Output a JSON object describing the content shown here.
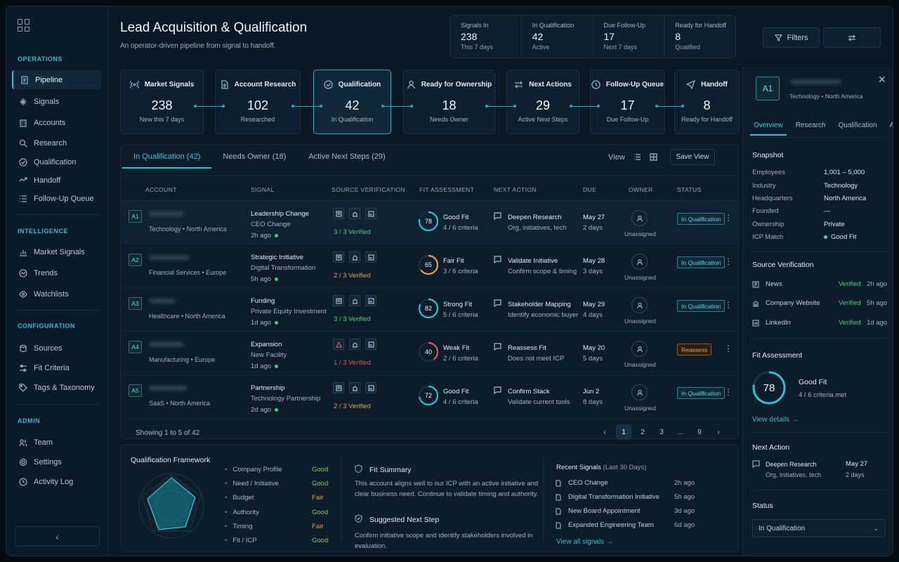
{
  "sidebar": {
    "sections": [
      {
        "title": "OPERATIONS",
        "items": [
          "Pipeline",
          "Signals",
          "Accounts",
          "Research",
          "Qualification",
          "Handoff",
          "Follow-Up Queue"
        ]
      },
      {
        "title": "INTELLIGENCE",
        "items": [
          "Market Signals",
          "Trends",
          "Watchlists"
        ]
      },
      {
        "title": "CONFIGURATION",
        "items": [
          "Sources",
          "Fit Criteria",
          "Tags & Taxonomy"
        ]
      },
      {
        "title": "ADMIN",
        "items": [
          "Team",
          "Settings",
          "Activity Log"
        ]
      }
    ],
    "collapse": "‹"
  },
  "header": {
    "title": "Lead Acquisition & Qualification",
    "subtitle": "An operator-driven pipeline from signal to handoff.",
    "kpis": [
      {
        "label": "Signals In",
        "value": "238",
        "sub": "This 7 days"
      },
      {
        "label": "In Qualification",
        "value": "42",
        "sub": "Active"
      },
      {
        "label": "Due Follow-Up",
        "value": "17",
        "sub": "Next 7 days"
      },
      {
        "label": "Ready for Handoff",
        "value": "8",
        "sub": "Qualified"
      }
    ],
    "filters_label": "Filters"
  },
  "stages": [
    {
      "title": "Market Signals",
      "value": "238",
      "sub": "New this 7 days",
      "icon": "signal-icon"
    },
    {
      "title": "Account Research",
      "value": "102",
      "sub": "Researched",
      "icon": "document-icon"
    },
    {
      "title": "Qualification",
      "value": "42",
      "sub": "In Qualification",
      "icon": "check-circle-icon"
    },
    {
      "title": "Ready for Ownership",
      "value": "18",
      "sub": "Needs Owner",
      "icon": "user-icon"
    },
    {
      "title": "Next Actions",
      "value": "29",
      "sub": "Active Next Steps",
      "icon": "arrows-icon"
    },
    {
      "title": "Follow-Up Queue",
      "value": "17",
      "sub": "Due Follow-Up",
      "icon": "clock-icon"
    },
    {
      "title": "Handoff",
      "value": "8",
      "sub": "Ready for Handoff",
      "icon": "send-icon"
    }
  ],
  "table": {
    "tabs": [
      "In Qualification (42)",
      "Needs Owner (18)",
      "Active Next Steps (29)"
    ],
    "view_label": "View",
    "save_view": "Save View",
    "columns": [
      "ACCOUNT",
      "SIGNAL",
      "SOURCE VERIFICATION",
      "FIT ASSESSMENT",
      "NEXT ACTION",
      "DUE",
      "OWNER",
      "STATUS"
    ],
    "rows": [
      {
        "rank": "A1",
        "loc": "Technology • North America",
        "signal": "Leadership Change",
        "signal_sub": "CEO Change",
        "age": "2h ago",
        "verified": "3 / 3 Verified",
        "score": "78",
        "fit": "Good Fit",
        "criteria": "4 / 6 criteria",
        "action": "Deepen Research",
        "action_sub": "Org, initiatives, tech",
        "due": "May 27",
        "due_sub": "2 days",
        "owner": "Unassigned",
        "status": "In Qualification"
      },
      {
        "rank": "A2",
        "loc": "Financial Services • Europe",
        "signal": "Strategic Initiative",
        "signal_sub": "Digital Transformation",
        "age": "5h ago",
        "verified": "2 / 3 Verified",
        "score": "65",
        "fit": "Fair Fit",
        "criteria": "3 / 6 criteria",
        "action": "Validate Initiative",
        "action_sub": "Confirm scope & timing",
        "due": "May 28",
        "due_sub": "3 days",
        "owner": "Unassigned",
        "status": "In Qualification"
      },
      {
        "rank": "A3",
        "loc": "Healthcare • North America",
        "signal": "Funding",
        "signal_sub": "Private Equity Investment",
        "age": "1d ago",
        "verified": "3 / 3 Verified",
        "score": "82",
        "fit": "Strong Fit",
        "criteria": "5 / 6 criteria",
        "action": "Stakeholder Mapping",
        "action_sub": "Identify economic buyer",
        "due": "May 29",
        "due_sub": "4 days",
        "owner": "Unassigned",
        "status": "In Qualification"
      },
      {
        "rank": "A4",
        "loc": "Manufacturing • Europe",
        "signal": "Expansion",
        "signal_sub": "New Facility",
        "age": "1d ago",
        "verified": "1 / 3 Verified",
        "score": "40",
        "fit": "Weak Fit",
        "criteria": "2 / 6 criteria",
        "action": "Reassess Fit",
        "action_sub": "Does not meet ICP",
        "due": "May 20",
        "due_sub": "5 days",
        "owner": "Unassigned",
        "status": "Reassess"
      },
      {
        "rank": "A5",
        "loc": "SaaS • North America",
        "signal": "Partnership",
        "signal_sub": "Technology Partnership",
        "age": "2d ago",
        "verified": "2 / 3 Verified",
        "score": "72",
        "fit": "Good Fit",
        "criteria": "4 / 6 criteria",
        "action": "Confirm Stack",
        "action_sub": "Validate current tools",
        "due": "Jun 2",
        "due_sub": "8 days",
        "owner": "Unassigned",
        "status": "In Qualification"
      }
    ],
    "showing": "Showing 1 to 5 of 42",
    "pages": [
      "1",
      "2",
      "3",
      "...",
      "9"
    ]
  },
  "framework": {
    "title": "Qualification Framework",
    "criteria": [
      {
        "name": "Company Profile",
        "rating": "Good"
      },
      {
        "name": "Need / Initiative",
        "rating": "Good"
      },
      {
        "name": "Budget",
        "rating": "Fair"
      },
      {
        "name": "Authority",
        "rating": "Good"
      },
      {
        "name": "Timing",
        "rating": "Fair"
      },
      {
        "name": "Fit / ICP",
        "rating": "Good"
      }
    ],
    "fit_summary_title": "Fit Summary",
    "fit_summary_text_1": "This account aligns well to our ICP with an active initiative and",
    "fit_summary_text_2": "clear business need. Continue to validate timing and authority.",
    "next_step_title": "Suggested Next Step",
    "next_step_text_1": "Confirm initiative scope and identify stakeholders involved in",
    "next_step_text_2": "evaluation.",
    "recent_title": "Recent Signals",
    "recent_sub": "(Last 30 Days)",
    "recent": [
      {
        "name": "CEO Change",
        "time": "2h ago"
      },
      {
        "name": "Digital Transformation Initiative",
        "time": "5h ago"
      },
      {
        "name": "New Board Appointment",
        "time": "3d ago"
      },
      {
        "name": "Expanded Engineering Team",
        "time": "6d ago"
      }
    ],
    "view_all": "View all signals →"
  },
  "detail": {
    "avatar": "A1",
    "loc": "Technology • North America",
    "tabs": [
      "Overview",
      "Research",
      "Qualification",
      "Activity"
    ],
    "snapshot_title": "Snapshot",
    "snapshot": [
      {
        "k": "Employees",
        "v": "1,001 – 5,000"
      },
      {
        "k": "Industry",
        "v": "Technology"
      },
      {
        "k": "Headquarters",
        "v": "North America"
      },
      {
        "k": "Founded",
        "v": "—"
      },
      {
        "k": "Ownership",
        "v": "Private"
      },
      {
        "k": "ICP Match",
        "v": "Good Fit"
      }
    ],
    "source_title": "Source Verification",
    "sources": [
      {
        "name": "News",
        "status": "Verified",
        "time": "2h ago"
      },
      {
        "name": "Company Website",
        "status": "Verified",
        "time": "5h ago"
      },
      {
        "name": "LinkedIn",
        "status": "Verified",
        "time": "1d ago"
      }
    ],
    "fit_title": "Fit Assessment",
    "fit_score": "78",
    "fit_label": "Good Fit",
    "fit_sub": "4 / 6 criteria met",
    "view_details": "View details →",
    "next_title": "Next Action",
    "next_action": "Deepen Research",
    "next_action_sub": "Org, initiatives, tech",
    "next_due": "May 27",
    "next_due_sub": "2 days",
    "status_title": "Status",
    "status_value": "In Qualification"
  },
  "colors": {
    "accent": "#2cc3d6",
    "good": "#3ecf7a",
    "fair": "#e0a24b",
    "bad": "#d95a4f"
  }
}
